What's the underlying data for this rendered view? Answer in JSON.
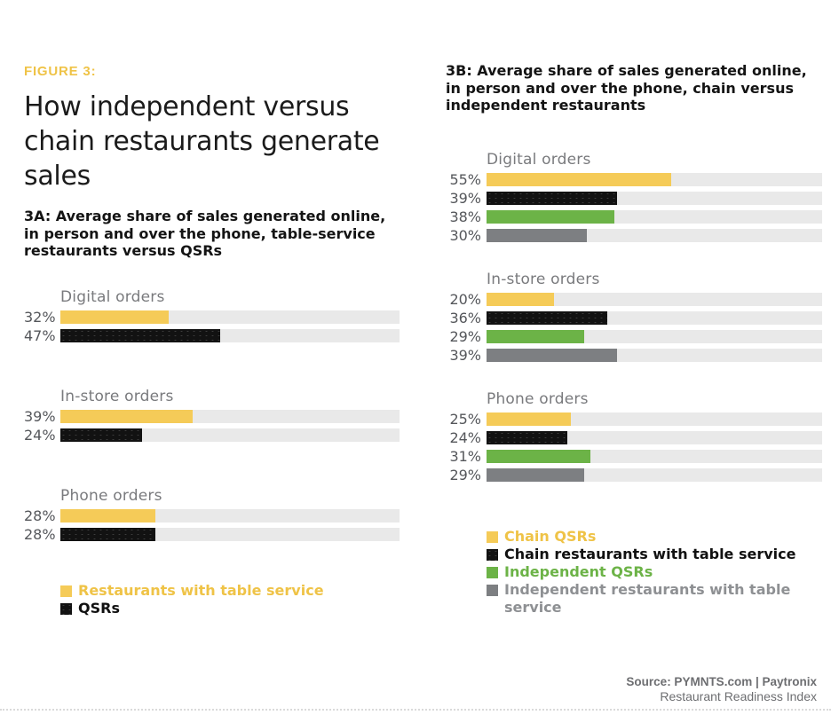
{
  "header": {
    "eyebrow": "FIGURE 3:",
    "title_lines": [
      "How independent versus",
      "chain restaurants generate",
      "sales"
    ]
  },
  "panel_a": {
    "subtitle_lines": [
      "3A: Average share of sales generated online,",
      "in person and over the phone, table-service",
      "restaurants versus QSRs"
    ],
    "groups": [
      {
        "label": "Digital orders",
        "rows": [
          {
            "pct": "32%",
            "value": 32
          },
          {
            "pct": "47%",
            "value": 47
          }
        ]
      },
      {
        "label": "In-store orders",
        "rows": [
          {
            "pct": "39%",
            "value": 39
          },
          {
            "pct": "24%",
            "value": 24
          }
        ]
      },
      {
        "label": "Phone orders",
        "rows": [
          {
            "pct": "28%",
            "value": 28
          },
          {
            "pct": "28%",
            "value": 28
          }
        ]
      }
    ],
    "legend": [
      {
        "label": "Restaurants with table service",
        "color": "#F5CB58"
      },
      {
        "label": "QSRs",
        "color": "#121212"
      }
    ]
  },
  "panel_b": {
    "subtitle_lines": [
      "3B: Average share of sales generated online,",
      "in person and over the phone, chain versus",
      "independent restaurants"
    ],
    "groups": [
      {
        "label": "Digital orders",
        "rows": [
          {
            "pct": "55%",
            "value": 55
          },
          {
            "pct": "39%",
            "value": 39
          },
          {
            "pct": "38%",
            "value": 38
          },
          {
            "pct": "30%",
            "value": 30
          }
        ]
      },
      {
        "label": "In-store orders",
        "rows": [
          {
            "pct": "20%",
            "value": 20
          },
          {
            "pct": "36%",
            "value": 36
          },
          {
            "pct": "29%",
            "value": 29
          },
          {
            "pct": "39%",
            "value": 39
          }
        ]
      },
      {
        "label": "Phone orders",
        "rows": [
          {
            "pct": "25%",
            "value": 25
          },
          {
            "pct": "24%",
            "value": 24
          },
          {
            "pct": "31%",
            "value": 31
          },
          {
            "pct": "29%",
            "value": 29
          }
        ]
      }
    ],
    "legend": [
      {
        "label": "Chain QSRs",
        "color": "#F5CB58"
      },
      {
        "label": "Chain restaurants with table service",
        "color": "#121212"
      },
      {
        "label": "Independent QSRs",
        "color": "#6CB347"
      },
      {
        "label": "Independent restaurants with table service",
        "color": "#7D7F82"
      }
    ]
  },
  "footer": {
    "source": "Source: PYMNTS.com  |  Paytronix",
    "index": "Restaurant Readiness Index"
  },
  "colors": {
    "bar_yellow": "#F5CB58",
    "bar_black": "#121212",
    "bar_green": "#6CB347",
    "bar_gray": "#7D7F82",
    "bar_track": "#E9E9E9",
    "accent_yellow_text": "#EFC347",
    "group_label_gray": "#797A7D",
    "pct_label_gray": "#55575B",
    "legend_gray_text": "#8E9093",
    "footer_gray": "#6D6E71",
    "title_black": "#1B1B1B"
  },
  "chart_data": [
    {
      "type": "bar",
      "title": "3A: Average share of sales generated online, in person and over the phone, table-service restaurants versus QSRs",
      "categories": [
        "Digital orders",
        "In-store orders",
        "Phone orders"
      ],
      "series": [
        {
          "name": "Restaurants with table service",
          "color": "#F5CB58",
          "values": [
            32,
            39,
            28
          ]
        },
        {
          "name": "QSRs",
          "color": "#121212",
          "values": [
            47,
            24,
            28
          ]
        }
      ],
      "unit": "%",
      "xlim": [
        0,
        100
      ],
      "orientation": "horizontal",
      "grid": false,
      "legend_position": "bottom"
    },
    {
      "type": "bar",
      "title": "3B: Average share of sales generated online, in person and over the phone, chain versus independent restaurants",
      "categories": [
        "Digital orders",
        "In-store orders",
        "Phone orders"
      ],
      "series": [
        {
          "name": "Chain QSRs",
          "color": "#F5CB58",
          "values": [
            55,
            20,
            25
          ]
        },
        {
          "name": "Chain restaurants with table service",
          "color": "#121212",
          "values": [
            39,
            36,
            24
          ]
        },
        {
          "name": "Independent QSRs",
          "color": "#6CB347",
          "values": [
            38,
            29,
            31
          ]
        },
        {
          "name": "Independent restaurants with table service",
          "color": "#7D7F82",
          "values": [
            30,
            39,
            29
          ]
        }
      ],
      "unit": "%",
      "xlim": [
        0,
        100
      ],
      "orientation": "horizontal",
      "grid": false,
      "legend_position": "bottom"
    }
  ]
}
